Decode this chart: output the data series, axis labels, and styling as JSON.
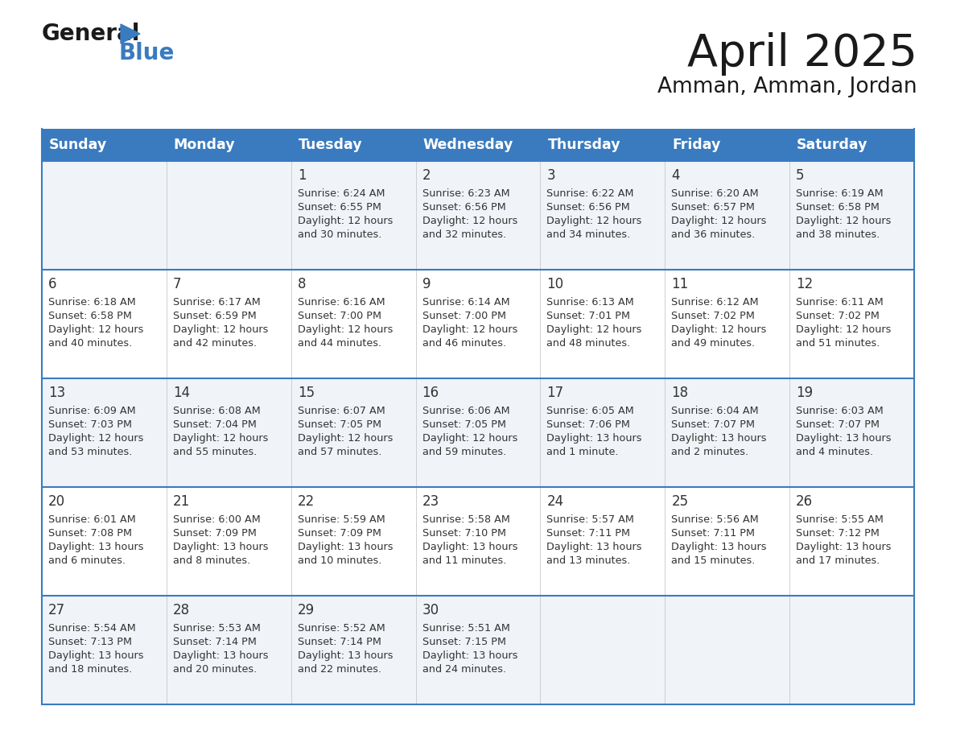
{
  "title": "April 2025",
  "subtitle": "Amman, Amman, Jordan",
  "days_of_week": [
    "Sunday",
    "Monday",
    "Tuesday",
    "Wednesday",
    "Thursday",
    "Friday",
    "Saturday"
  ],
  "header_bg": "#3a7bbf",
  "header_text": "#ffffff",
  "row_bg_odd": "#f0f4f8",
  "row_bg_even": "#ffffff",
  "border_color": "#3a7bbf",
  "text_color": "#1a1a1a",
  "cell_text_color": "#333333",
  "weeks": [
    [
      {
        "day": null,
        "info": null
      },
      {
        "day": null,
        "info": null
      },
      {
        "day": 1,
        "info": {
          "sunrise": "6:24 AM",
          "sunset": "6:55 PM",
          "daylight": "12 hours and 30 minutes"
        }
      },
      {
        "day": 2,
        "info": {
          "sunrise": "6:23 AM",
          "sunset": "6:56 PM",
          "daylight": "12 hours and 32 minutes"
        }
      },
      {
        "day": 3,
        "info": {
          "sunrise": "6:22 AM",
          "sunset": "6:56 PM",
          "daylight": "12 hours and 34 minutes"
        }
      },
      {
        "day": 4,
        "info": {
          "sunrise": "6:20 AM",
          "sunset": "6:57 PM",
          "daylight": "12 hours and 36 minutes"
        }
      },
      {
        "day": 5,
        "info": {
          "sunrise": "6:19 AM",
          "sunset": "6:58 PM",
          "daylight": "12 hours and 38 minutes"
        }
      }
    ],
    [
      {
        "day": 6,
        "info": {
          "sunrise": "6:18 AM",
          "sunset": "6:58 PM",
          "daylight": "12 hours and 40 minutes"
        }
      },
      {
        "day": 7,
        "info": {
          "sunrise": "6:17 AM",
          "sunset": "6:59 PM",
          "daylight": "12 hours and 42 minutes"
        }
      },
      {
        "day": 8,
        "info": {
          "sunrise": "6:16 AM",
          "sunset": "7:00 PM",
          "daylight": "12 hours and 44 minutes"
        }
      },
      {
        "day": 9,
        "info": {
          "sunrise": "6:14 AM",
          "sunset": "7:00 PM",
          "daylight": "12 hours and 46 minutes"
        }
      },
      {
        "day": 10,
        "info": {
          "sunrise": "6:13 AM",
          "sunset": "7:01 PM",
          "daylight": "12 hours and 48 minutes"
        }
      },
      {
        "day": 11,
        "info": {
          "sunrise": "6:12 AM",
          "sunset": "7:02 PM",
          "daylight": "12 hours and 49 minutes"
        }
      },
      {
        "day": 12,
        "info": {
          "sunrise": "6:11 AM",
          "sunset": "7:02 PM",
          "daylight": "12 hours and 51 minutes"
        }
      }
    ],
    [
      {
        "day": 13,
        "info": {
          "sunrise": "6:09 AM",
          "sunset": "7:03 PM",
          "daylight": "12 hours and 53 minutes"
        }
      },
      {
        "day": 14,
        "info": {
          "sunrise": "6:08 AM",
          "sunset": "7:04 PM",
          "daylight": "12 hours and 55 minutes"
        }
      },
      {
        "day": 15,
        "info": {
          "sunrise": "6:07 AM",
          "sunset": "7:05 PM",
          "daylight": "12 hours and 57 minutes"
        }
      },
      {
        "day": 16,
        "info": {
          "sunrise": "6:06 AM",
          "sunset": "7:05 PM",
          "daylight": "12 hours and 59 minutes"
        }
      },
      {
        "day": 17,
        "info": {
          "sunrise": "6:05 AM",
          "sunset": "7:06 PM",
          "daylight": "13 hours and 1 minute"
        }
      },
      {
        "day": 18,
        "info": {
          "sunrise": "6:04 AM",
          "sunset": "7:07 PM",
          "daylight": "13 hours and 2 minutes"
        }
      },
      {
        "day": 19,
        "info": {
          "sunrise": "6:03 AM",
          "sunset": "7:07 PM",
          "daylight": "13 hours and 4 minutes"
        }
      }
    ],
    [
      {
        "day": 20,
        "info": {
          "sunrise": "6:01 AM",
          "sunset": "7:08 PM",
          "daylight": "13 hours and 6 minutes"
        }
      },
      {
        "day": 21,
        "info": {
          "sunrise": "6:00 AM",
          "sunset": "7:09 PM",
          "daylight": "13 hours and 8 minutes"
        }
      },
      {
        "day": 22,
        "info": {
          "sunrise": "5:59 AM",
          "sunset": "7:09 PM",
          "daylight": "13 hours and 10 minutes"
        }
      },
      {
        "day": 23,
        "info": {
          "sunrise": "5:58 AM",
          "sunset": "7:10 PM",
          "daylight": "13 hours and 11 minutes"
        }
      },
      {
        "day": 24,
        "info": {
          "sunrise": "5:57 AM",
          "sunset": "7:11 PM",
          "daylight": "13 hours and 13 minutes"
        }
      },
      {
        "day": 25,
        "info": {
          "sunrise": "5:56 AM",
          "sunset": "7:11 PM",
          "daylight": "13 hours and 15 minutes"
        }
      },
      {
        "day": 26,
        "info": {
          "sunrise": "5:55 AM",
          "sunset": "7:12 PM",
          "daylight": "13 hours and 17 minutes"
        }
      }
    ],
    [
      {
        "day": 27,
        "info": {
          "sunrise": "5:54 AM",
          "sunset": "7:13 PM",
          "daylight": "13 hours and 18 minutes"
        }
      },
      {
        "day": 28,
        "info": {
          "sunrise": "5:53 AM",
          "sunset": "7:14 PM",
          "daylight": "13 hours and 20 minutes"
        }
      },
      {
        "day": 29,
        "info": {
          "sunrise": "5:52 AM",
          "sunset": "7:14 PM",
          "daylight": "13 hours and 22 minutes"
        }
      },
      {
        "day": 30,
        "info": {
          "sunrise": "5:51 AM",
          "sunset": "7:15 PM",
          "daylight": "13 hours and 24 minutes"
        }
      },
      {
        "day": null,
        "info": null
      },
      {
        "day": null,
        "info": null
      },
      {
        "day": null,
        "info": null
      }
    ]
  ]
}
